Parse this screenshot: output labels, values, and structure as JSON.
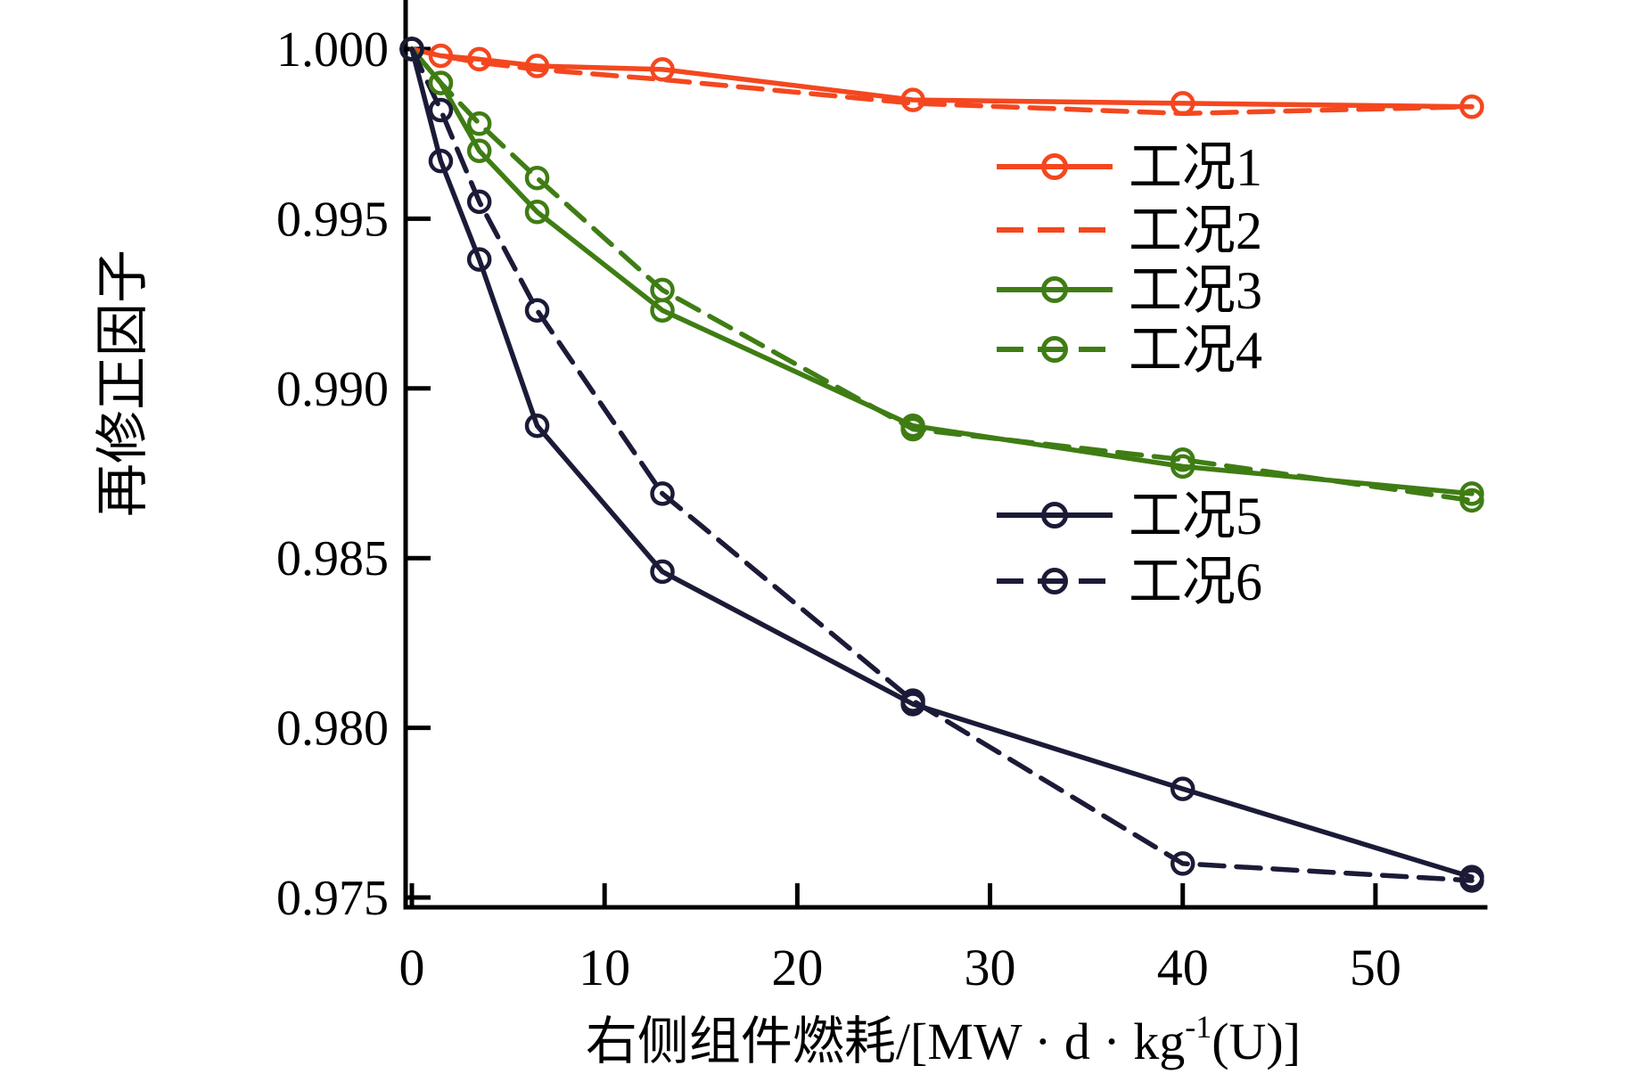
{
  "figure": {
    "background": "#ffffff",
    "axis_color": "#000000"
  },
  "chart_data": {
    "type": "line",
    "title": "",
    "xlabel": "右侧组件燃耗/[MW·d·kg⁻¹(U)]",
    "xlabel_parts": {
      "prefix": "右侧组件燃耗/[MW · d · kg",
      "superscript": "-1",
      "suffix": "(U)]"
    },
    "ylabel": "再修正因子",
    "x": [
      0,
      1.5,
      3.5,
      6.5,
      13,
      26,
      40,
      55
    ],
    "xlim": [
      0,
      55.8
    ],
    "ylim": [
      0.9747,
      1.0014
    ],
    "x_ticks": [
      0,
      10,
      20,
      30,
      40,
      50
    ],
    "y_ticks": [
      "1.000",
      "0.995",
      "0.990",
      "0.985",
      "0.980",
      "0.975"
    ],
    "grid": false,
    "legend_position": "inside-right",
    "series": [
      {
        "name": "工况1",
        "color": "#F4471F",
        "style": "solid",
        "marker": "circle",
        "values": [
          1.0,
          0.9998,
          0.9997,
          0.9995,
          0.9994,
          0.9985,
          0.9984,
          0.9983
        ]
      },
      {
        "name": "工况2",
        "color": "#F4471F",
        "style": "dashed",
        "marker": "none",
        "values": [
          1.0,
          0.9998,
          0.9996,
          0.9994,
          0.9991,
          0.9984,
          0.9981,
          0.9983
        ]
      },
      {
        "name": "工况3",
        "color": "#3F7D14",
        "style": "solid",
        "marker": "circle",
        "values": [
          1.0,
          0.999,
          0.997,
          0.9952,
          0.9923,
          0.9889,
          0.9877,
          0.9869
        ]
      },
      {
        "name": "工况4",
        "color": "#3F7D14",
        "style": "dashed",
        "marker": "circle",
        "values": [
          1.0,
          0.999,
          0.9978,
          0.9962,
          0.9929,
          0.9888,
          0.9879,
          0.9867
        ]
      },
      {
        "name": "工况5",
        "color": "#1B1B38",
        "style": "solid",
        "marker": "circle",
        "values": [
          1.0,
          0.9967,
          0.9938,
          0.9889,
          0.9846,
          0.9807,
          0.9782,
          0.9756
        ]
      },
      {
        "name": "工况6",
        "color": "#1B1B38",
        "style": "dashed",
        "marker": "circle",
        "values": [
          1.0,
          0.9982,
          0.9955,
          0.9923,
          0.9869,
          0.9808,
          0.976,
          0.9755
        ]
      }
    ]
  }
}
